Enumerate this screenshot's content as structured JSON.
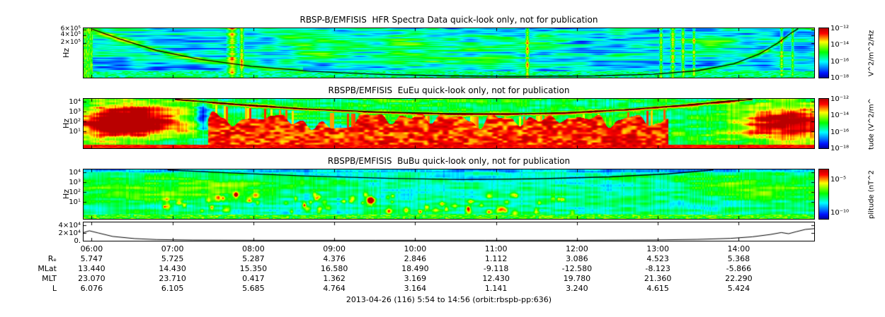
{
  "figure": {
    "caption": "2013-04-26 (116) 5:54 to 14:56 (orbit:rbspb-pp:636)"
  },
  "time_axis": {
    "start": "5:54",
    "end": "14:56",
    "tick_labels": [
      "06:00",
      "07:00",
      "08:00",
      "09:00",
      "10:00",
      "11:00",
      "12:00",
      "13:00",
      "14:00"
    ]
  },
  "ephemeris": {
    "rows": [
      {
        "label": "Rₑ",
        "values": [
          "5.747",
          "5.725",
          "5.287",
          "4.376",
          "2.846",
          "1.112",
          "3.086",
          "4.523",
          "5.368"
        ]
      },
      {
        "label": "MLat",
        "values": [
          "13.440",
          "14.430",
          "15.350",
          "16.580",
          "18.490",
          "-9.118",
          "-12.580",
          "-8.123",
          "-5.866"
        ]
      },
      {
        "label": "MLT",
        "values": [
          "23.070",
          "23.710",
          "0.417",
          "1.362",
          "3.169",
          "12.430",
          "19.780",
          "21.360",
          "22.290"
        ]
      },
      {
        "label": "L",
        "values": [
          "6.076",
          "6.105",
          "5.685",
          "4.764",
          "3.164",
          "1.141",
          "3.240",
          "4.615",
          "5.424"
        ]
      }
    ]
  },
  "chart_data": [
    {
      "type": "heatmap",
      "title": "RBSP-B/EMFISIS  HFR Spectra Data quick-look only, not for publication",
      "ylabel": "Hz",
      "yaxis": {
        "ticks": [
          {
            "label": "6×10⁵",
            "pos": 0.03
          },
          {
            "label": "4×10⁵",
            "pos": 0.14
          },
          {
            "label": "2×10⁵",
            "pos": 0.3
          }
        ]
      },
      "colorbar": {
        "label": "V^2/m^2/Hz",
        "ticks": [
          {
            "label": "10⁻¹²",
            "pos": 0.0
          },
          {
            "label": "10⁻¹⁴",
            "pos": 0.333
          },
          {
            "label": "10⁻¹⁶",
            "pos": 0.667
          },
          {
            "label": "10⁻¹⁸",
            "pos": 1.0
          }
        ]
      },
      "curve": [
        [
          0.012,
          0.02
        ],
        [
          0.05,
          0.22
        ],
        [
          0.1,
          0.45
        ],
        [
          0.16,
          0.63
        ],
        [
          0.23,
          0.77
        ],
        [
          0.31,
          0.87
        ],
        [
          0.4,
          0.93
        ],
        [
          0.5,
          0.965
        ],
        [
          0.6,
          0.975
        ],
        [
          0.7,
          0.965
        ],
        [
          0.78,
          0.93
        ],
        [
          0.84,
          0.86
        ],
        [
          0.89,
          0.72
        ],
        [
          0.925,
          0.52
        ],
        [
          0.95,
          0.3
        ],
        [
          0.968,
          0.1
        ],
        [
          0.978,
          0.0
        ]
      ],
      "features": {
        "base": 0.3,
        "stripes": {
          "freq": 2.1,
          "amp": 0.05
        },
        "noise1": {
          "xs": 26,
          "ys": 2.6,
          "amp": 0.34
        },
        "noise2": {
          "xs": 150,
          "ys": 9,
          "amp": 0.16
        },
        "blobs": [
          {
            "x": 0.33,
            "y": 0.4,
            "rx": 0.045,
            "ry": 0.22,
            "amp": 0.17
          },
          {
            "x": 0.44,
            "y": 0.28,
            "rx": 0.04,
            "ry": 0.2,
            "amp": 0.15
          },
          {
            "x": 0.55,
            "y": 0.5,
            "rx": 0.05,
            "ry": 0.28,
            "amp": 0.14
          },
          {
            "x": 0.29,
            "y": 0.22,
            "rx": 0.03,
            "ry": 0.18,
            "amp": 0.14
          },
          {
            "x": 0.63,
            "y": 0.34,
            "rx": 0.035,
            "ry": 0.24,
            "amp": 0.13
          },
          {
            "x": 0.86,
            "y": 0.3,
            "rx": 0.04,
            "ry": 0.2,
            "amp": 0.12
          },
          {
            "x": 0.47,
            "y": 0.62,
            "rx": 0.05,
            "ry": 0.2,
            "amp": 0.12
          }
        ],
        "streaks": [
          {
            "x": 0.203,
            "w": 0.009,
            "amp": 0.55
          },
          {
            "x": 0.216,
            "w": 0.004,
            "amp": 0.5
          },
          {
            "x": 0.607,
            "w": 0.0035,
            "amp": 0.5
          },
          {
            "x": 0.79,
            "w": 0.003,
            "amp": 0.45
          },
          {
            "x": 0.806,
            "w": 0.004,
            "amp": 0.5
          },
          {
            "x": 0.82,
            "w": 0.003,
            "amp": 0.45
          },
          {
            "x": 0.835,
            "w": 0.0025,
            "amp": 0.4
          },
          {
            "x": 0.955,
            "w": 0.003,
            "amp": 0.4
          },
          {
            "x": 0.97,
            "w": 0.0025,
            "amp": 0.35
          }
        ],
        "glows": [
          {
            "amp": 0.3,
            "sigma": 3.0,
            "x0": 0.0,
            "x1": 0.3
          },
          {
            "amp": 0.22,
            "sigma": 2.5,
            "x0": 0.82,
            "x1": 1.0
          }
        ],
        "left_block": {
          "x1": 0.012,
          "t": 0.55
        },
        "bottom": {
          "h": 9,
          "t": 0.42,
          "var": 0.25
        }
      }
    },
    {
      "type": "heatmap",
      "title": "RBSPB/EMFISIS  EuEu quick-look only, not for publication",
      "ylabel": "Hz",
      "yaxis": {
        "ticks": [
          {
            "label": "10⁴",
            "pos": 0.057
          },
          {
            "label": "10³",
            "pos": 0.257
          },
          {
            "label": "10²",
            "pos": 0.457
          },
          {
            "label": "10¹",
            "pos": 0.657
          }
        ]
      },
      "colorbar": {
        "label": "tude (V^2/m^",
        "ticks": [
          {
            "label": "10⁻¹²",
            "pos": 0.0
          },
          {
            "label": "10⁻¹⁴",
            "pos": 0.333
          },
          {
            "label": "10⁻¹⁶",
            "pos": 0.667
          },
          {
            "label": "10⁻¹⁸",
            "pos": 1.0
          }
        ]
      },
      "curve": [
        [
          0.125,
          0.0
        ],
        [
          0.2,
          0.1
        ],
        [
          0.3,
          0.2
        ],
        [
          0.4,
          0.265
        ],
        [
          0.5,
          0.3
        ],
        [
          0.58,
          0.305
        ],
        [
          0.66,
          0.28
        ],
        [
          0.74,
          0.22
        ],
        [
          0.82,
          0.13
        ],
        [
          0.88,
          0.05
        ],
        [
          0.915,
          0.0
        ]
      ],
      "features": {
        "base": 0.46,
        "noise1": {
          "xs": 20,
          "ys": 3,
          "amp": 0.26
        },
        "noise2": {
          "xs": 90,
          "ys": 8,
          "amp": 0.14
        },
        "column_noise": {
          "amp": 0.1
        },
        "blobs": [
          {
            "x": 0.07,
            "y": 0.42,
            "rx": 0.075,
            "ry": 0.34,
            "amp": 0.62
          },
          {
            "x": 0.04,
            "y": 0.6,
            "rx": 0.05,
            "ry": 0.3,
            "amp": 0.3
          },
          {
            "x": 0.965,
            "y": 0.5,
            "rx": 0.07,
            "ry": 0.38,
            "amp": 0.58
          },
          {
            "x": 0.163,
            "y": 0.35,
            "rx": 0.008,
            "ry": 0.35,
            "amp": -0.45
          }
        ],
        "region": {
          "x0": 0.17,
          "x1": 0.8,
          "ytop": 0.44,
          "jitter": 0.2,
          "t": 0.88,
          "col_density": 0.22
        },
        "glows": [
          {
            "amp": 0.5,
            "sigma": 1.3,
            "x0": 0.125,
            "x1": 0.915
          }
        ],
        "bottom": {
          "h": 5,
          "t": 0.9,
          "var": 0.1
        }
      }
    },
    {
      "type": "heatmap",
      "title": "RBSPB/EMFISIS  BuBu quick-look only, not for publication",
      "ylabel": "Hz",
      "yaxis": {
        "ticks": [
          {
            "label": "10⁴",
            "pos": 0.057
          },
          {
            "label": "10³",
            "pos": 0.257
          },
          {
            "label": "10²",
            "pos": 0.457
          },
          {
            "label": "10¹",
            "pos": 0.657
          }
        ]
      },
      "colorbar": {
        "label": "plitude (nT^2",
        "ticks": [
          {
            "label": "10⁻⁵",
            "pos": 0.2
          },
          {
            "label": "10⁻¹⁰",
            "pos": 0.867
          }
        ]
      },
      "curve": [
        [
          0.115,
          0.0
        ],
        [
          0.2,
          0.07
        ],
        [
          0.3,
          0.13
        ],
        [
          0.42,
          0.18
        ],
        [
          0.52,
          0.205
        ],
        [
          0.62,
          0.19
        ],
        [
          0.72,
          0.15
        ],
        [
          0.8,
          0.09
        ],
        [
          0.862,
          0.0
        ]
      ],
      "features": {
        "base": 0.36,
        "noise1": {
          "xs": 24,
          "ys": 3.2,
          "amp": 0.2
        },
        "noise2": {
          "xs": 110,
          "ys": 10,
          "amp": 0.1
        },
        "column_noise": {
          "amp": 0.08
        },
        "blobs": [
          {
            "x": 0.1,
            "y": 0.4,
            "rx": 0.1,
            "ry": 0.26,
            "amp": 0.2
          },
          {
            "x": 0.93,
            "y": 0.36,
            "rx": 0.085,
            "ry": 0.24,
            "amp": 0.2
          },
          {
            "x": 0.2,
            "y": 0.3,
            "rx": 0.05,
            "ry": 0.2,
            "amp": 0.12
          }
        ],
        "speckles": {
          "x0": 0.1,
          "x1": 0.68,
          "y0": 0.5,
          "y1": 0.88,
          "n": 70,
          "amp": 0.42,
          "r": 2.2
        },
        "below_curve": 0.05,
        "top_dark": {
          "h": 0.05,
          "amp": -0.1
        },
        "bottom": {
          "h": 6,
          "t": 0.55,
          "var": 0.3
        }
      }
    },
    {
      "type": "line",
      "yaxis": {
        "max": 47000,
        "ticks": [
          {
            "label": "4×10⁴",
            "value": 40000
          },
          {
            "label": "2×10⁴",
            "value": 20000
          },
          {
            "label": "0.",
            "value": 0
          }
        ]
      },
      "series": [
        [
          0.0,
          21000
        ],
        [
          0.008,
          25500
        ],
        [
          0.02,
          20000
        ],
        [
          0.04,
          11000
        ],
        [
          0.07,
          5500
        ],
        [
          0.1,
          3000
        ],
        [
          0.15,
          1800
        ],
        [
          0.25,
          1200
        ],
        [
          0.4,
          1000
        ],
        [
          0.55,
          1000
        ],
        [
          0.68,
          1300
        ],
        [
          0.78,
          2000
        ],
        [
          0.84,
          3500
        ],
        [
          0.885,
          6000
        ],
        [
          0.915,
          10000
        ],
        [
          0.94,
          16000
        ],
        [
          0.955,
          21000
        ],
        [
          0.965,
          18000
        ],
        [
          0.975,
          23000
        ],
        [
          0.988,
          29000
        ],
        [
          1.0,
          31000
        ]
      ]
    }
  ]
}
